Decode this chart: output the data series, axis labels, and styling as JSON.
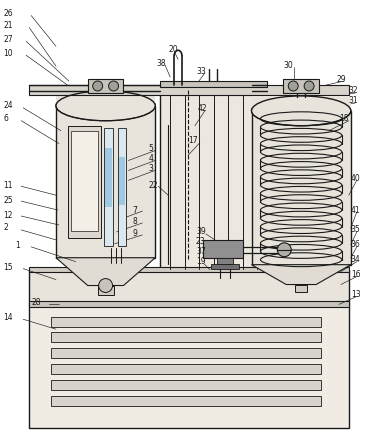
{
  "bg_color": "#f0ece4",
  "line_color": "#1a1a1a",
  "fg": "#1a1a1a"
}
